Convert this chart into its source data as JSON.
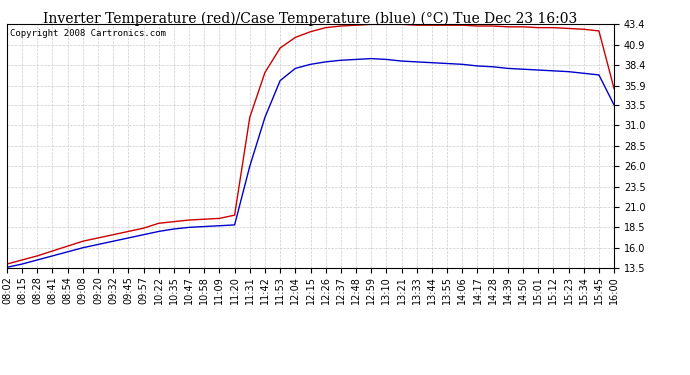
{
  "title": "Inverter Temperature (red)/Case Temperature (blue) (°C) Tue Dec 23 16:03",
  "copyright": "Copyright 2008 Cartronics.com",
  "yticks": [
    13.5,
    16.0,
    18.5,
    21.0,
    23.5,
    26.0,
    28.5,
    31.0,
    33.5,
    35.9,
    38.4,
    40.9,
    43.4
  ],
  "ylim": [
    13.5,
    43.4
  ],
  "xtick_labels": [
    "08:02",
    "08:15",
    "08:28",
    "08:41",
    "08:54",
    "09:08",
    "09:20",
    "09:32",
    "09:45",
    "09:57",
    "10:22",
    "10:35",
    "10:47",
    "10:58",
    "11:09",
    "11:20",
    "11:31",
    "11:42",
    "11:53",
    "12:04",
    "12:15",
    "12:26",
    "12:37",
    "12:48",
    "12:59",
    "13:10",
    "13:21",
    "13:33",
    "13:44",
    "13:55",
    "14:06",
    "14:17",
    "14:28",
    "14:39",
    "14:50",
    "15:01",
    "15:12",
    "15:23",
    "15:34",
    "15:45",
    "16:00"
  ],
  "red_line": [
    14.0,
    14.5,
    15.0,
    15.6,
    16.2,
    16.8,
    17.2,
    17.6,
    18.0,
    18.4,
    19.0,
    19.2,
    19.4,
    19.5,
    19.6,
    20.0,
    32.0,
    37.5,
    40.5,
    41.8,
    42.5,
    43.0,
    43.2,
    43.3,
    43.4,
    43.4,
    43.4,
    43.3,
    43.3,
    43.3,
    43.3,
    43.2,
    43.2,
    43.1,
    43.1,
    43.0,
    43.0,
    42.9,
    42.8,
    42.6,
    35.5
  ],
  "blue_line": [
    13.6,
    14.0,
    14.5,
    15.0,
    15.5,
    16.0,
    16.4,
    16.8,
    17.2,
    17.6,
    18.0,
    18.3,
    18.5,
    18.6,
    18.7,
    18.8,
    26.0,
    32.0,
    36.5,
    38.0,
    38.5,
    38.8,
    39.0,
    39.1,
    39.2,
    39.1,
    38.9,
    38.8,
    38.7,
    38.6,
    38.5,
    38.3,
    38.2,
    38.0,
    37.9,
    37.8,
    37.7,
    37.6,
    37.4,
    37.2,
    33.5
  ],
  "red_color": "#cc0000",
  "blue_color": "#0000cc",
  "bg_color": "#ffffff",
  "grid_color": "#cccccc",
  "title_fontsize": 10,
  "copyright_fontsize": 6.5,
  "tick_fontsize": 7,
  "figwidth": 6.9,
  "figheight": 3.75
}
